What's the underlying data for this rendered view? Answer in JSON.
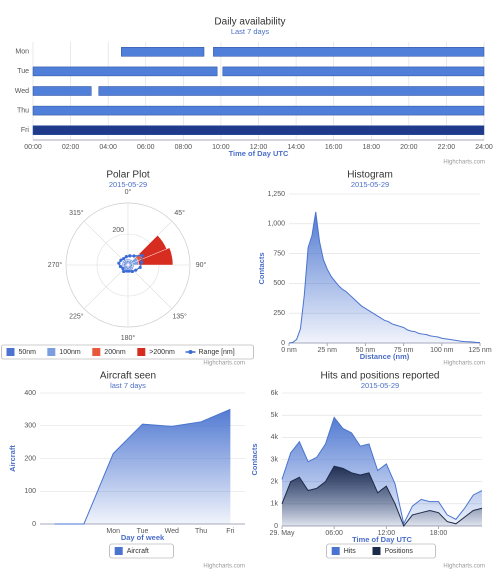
{
  "chart_data": [
    {
      "type": "xrange",
      "title": "Daily availability",
      "subtitle": "Last 7 days",
      "categories": [
        "Mon",
        "Tue",
        "Wed",
        "Thu",
        "Fri"
      ],
      "segments": [
        {
          "y": 0,
          "start": 4.7,
          "end": 9.1,
          "color": "#4f7fd8"
        },
        {
          "y": 0,
          "start": 9.6,
          "end": 24,
          "color": "#4f7fd8"
        },
        {
          "y": 1,
          "start": 0,
          "end": 9.8,
          "color": "#4f7fd8"
        },
        {
          "y": 1,
          "start": 10.1,
          "end": 24,
          "color": "#4f7fd8"
        },
        {
          "y": 2,
          "start": 0,
          "end": 3.1,
          "color": "#4f7fd8"
        },
        {
          "y": 2,
          "start": 3.5,
          "end": 24,
          "color": "#4f7fd8"
        },
        {
          "y": 3,
          "start": 0,
          "end": 24,
          "color": "#4f7fd8"
        },
        {
          "y": 4,
          "start": 0,
          "end": 24,
          "color": "#1f3a8a"
        }
      ],
      "xlim": [
        0,
        24
      ],
      "xticks": [
        {
          "value": 0,
          "label": "00:00"
        },
        {
          "value": 2,
          "label": "02:00"
        },
        {
          "value": 4,
          "label": "04:00"
        },
        {
          "value": 6,
          "label": "06:00"
        },
        {
          "value": 8,
          "label": "08:00"
        },
        {
          "value": 10,
          "label": "10:00"
        },
        {
          "value": 12,
          "label": "12:00"
        },
        {
          "value": 14,
          "label": "14:00"
        },
        {
          "value": 16,
          "label": "16:00"
        },
        {
          "value": 18,
          "label": "18:00"
        },
        {
          "value": 20,
          "label": "20:00"
        },
        {
          "value": 22,
          "label": "22:00"
        },
        {
          "value": 24,
          "label": "24:00"
        }
      ],
      "x_label": "Time of Day UTC",
      "grid": true,
      "credits": "Highcharts.com"
    },
    {
      "type": "polar",
      "title": "Polar Plot",
      "subtitle": "2015-05-29",
      "x": [
        0,
        22.5,
        45,
        67.5,
        90,
        112.5,
        135,
        157.5,
        180,
        202.5,
        225,
        247.5,
        270,
        292.5,
        315,
        337.5
      ],
      "xticks": [
        {
          "value": 0,
          "label": "0°"
        },
        {
          "value": 45,
          "label": "45°"
        },
        {
          "value": 90,
          "label": "90°"
        },
        {
          "value": 135,
          "label": "135°"
        },
        {
          "value": 180,
          "label": "180°"
        },
        {
          "value": 225,
          "label": "225°"
        },
        {
          "value": 270,
          "label": "270°"
        },
        {
          "value": 315,
          "label": "315°"
        }
      ],
      "ylim": [
        0,
        400
      ],
      "yticks": [
        200
      ],
      "series": [
        {
          "name": "50nm",
          "color": "#4a74d0",
          "values": [
            30,
            30,
            30,
            30,
            30,
            30,
            30,
            30,
            30,
            30,
            30,
            30,
            30,
            30,
            30,
            30
          ]
        },
        {
          "name": "100nm",
          "color": "#7b9ee0",
          "values": [
            10,
            10,
            40,
            40,
            10,
            10,
            10,
            10,
            10,
            10,
            10,
            10,
            10,
            10,
            10,
            10
          ]
        },
        {
          "name": "200nm",
          "color": "#e8593c",
          "values": [
            0,
            0,
            30,
            0,
            0,
            0,
            0,
            0,
            0,
            0,
            0,
            0,
            0,
            0,
            0,
            0
          ]
        },
        {
          "name": ">200nm",
          "color": "#d62d20",
          "values": [
            0,
            0,
            170,
            220,
            0,
            0,
            0,
            0,
            0,
            0,
            0,
            0,
            0,
            0,
            0,
            0
          ]
        },
        {
          "name": "Range [nm]",
          "type": "line",
          "color": "#3b6bd6",
          "values": [
            60,
            70,
            110,
            90,
            80,
            60,
            50,
            40,
            40,
            50,
            40,
            50,
            60,
            55,
            50,
            55
          ]
        }
      ],
      "legend": true,
      "credits": "Highcharts.com"
    },
    {
      "type": "area",
      "title": "Histogram",
      "subtitle": "2015-05-29",
      "x": [
        0,
        2.5,
        5,
        7.5,
        10,
        12.5,
        15,
        17.5,
        20,
        22.5,
        25,
        27.5,
        30,
        32.5,
        35,
        37.5,
        40,
        42.5,
        45,
        47.5,
        50,
        52.5,
        55,
        57.5,
        60,
        62.5,
        65,
        67.5,
        70,
        72.5,
        75,
        77.5,
        80,
        82.5,
        85,
        87.5,
        90,
        92.5,
        95,
        97.5,
        100,
        102.5,
        105,
        107.5,
        110,
        112.5,
        115,
        117.5,
        120,
        122.5,
        125
      ],
      "series": [
        {
          "color": "#4a74d0",
          "values": [
            0,
            5,
            30,
            120,
            400,
            800,
            900,
            1100,
            850,
            700,
            620,
            560,
            520,
            480,
            450,
            430,
            400,
            370,
            340,
            310,
            290,
            270,
            250,
            230,
            210,
            190,
            180,
            160,
            150,
            140,
            130,
            110,
            100,
            95,
            80,
            75,
            70,
            60,
            55,
            50,
            40,
            35,
            30,
            25,
            20,
            15,
            12,
            10,
            8,
            5,
            3
          ]
        }
      ],
      "xlim": [
        0,
        125
      ],
      "xticks": [
        {
          "value": 0,
          "label": "0 nm"
        },
        {
          "value": 25,
          "label": "25 nm"
        },
        {
          "value": 50,
          "label": "50 nm"
        },
        {
          "value": 75,
          "label": "75 nm"
        },
        {
          "value": 100,
          "label": "100 nm"
        },
        {
          "value": 125,
          "label": "125 nm"
        }
      ],
      "ylim": [
        0,
        1250
      ],
      "yticks": [
        0,
        250,
        500,
        750,
        {
          "value": 1000,
          "label": "1,000"
        },
        {
          "value": 1250,
          "label": "1,250"
        }
      ],
      "x_label": "Distance (nm)",
      "y_label": "Contacts",
      "grid": true,
      "credits": "Highcharts.com"
    },
    {
      "type": "area",
      "title": "Aircraft seen",
      "subtitle": "last 7 days",
      "categories": [
        null,
        null,
        "Mon",
        "Tue",
        "Wed",
        "Thu",
        "Fri"
      ],
      "series": [
        {
          "name": "Aircraft",
          "color": "#4a74d0",
          "values": [
            0,
            0,
            215,
            305,
            298,
            312,
            350
          ]
        }
      ],
      "ylim": [
        0,
        400
      ],
      "yticks": [
        0,
        100,
        200,
        300,
        400
      ],
      "x_label": "Day of week",
      "y_label": "Aircraft",
      "grid": true,
      "legend": true,
      "credits": "Highcharts.com"
    },
    {
      "type": "area",
      "title": "Hits and positions reported",
      "subtitle": "2015-05-29",
      "x": [
        0,
        1,
        2,
        3,
        4,
        5,
        6,
        7,
        8,
        9,
        10,
        11,
        12,
        13,
        14,
        15,
        16,
        17,
        18,
        19,
        20,
        21,
        22,
        23
      ],
      "series": [
        {
          "name": "Hits",
          "color": "#4a74d0",
          "values": [
            2100,
            3300,
            3800,
            2900,
            3100,
            3700,
            4900,
            4400,
            4200,
            3600,
            3700,
            2500,
            2800,
            1900,
            100,
            900,
            1200,
            1100,
            1100,
            500,
            300,
            800,
            1400,
            1600
          ]
        },
        {
          "name": "Positions",
          "color": "#1c2a4a",
          "values": [
            1000,
            2000,
            2200,
            1600,
            1700,
            2000,
            2700,
            2600,
            2400,
            2300,
            2400,
            1500,
            1800,
            1000,
            0,
            500,
            600,
            700,
            600,
            200,
            100,
            400,
            700,
            800
          ]
        }
      ],
      "xlim": [
        0,
        23
      ],
      "xticks": [
        {
          "value": 0,
          "label": "29. May"
        },
        {
          "value": 6,
          "label": "06:00"
        },
        {
          "value": 12,
          "label": "12:00"
        },
        {
          "value": 18,
          "label": "18:00"
        }
      ],
      "ylim": [
        0,
        6000
      ],
      "yticks": [
        0,
        {
          "value": 1000,
          "label": "1k"
        },
        {
          "value": 2000,
          "label": "2k"
        },
        {
          "value": 3000,
          "label": "3k"
        },
        {
          "value": 4000,
          "label": "4k"
        },
        {
          "value": 5000,
          "label": "5k"
        },
        {
          "value": 6000,
          "label": "6k"
        }
      ],
      "x_label": "Time of Day UTC",
      "y_label": "Contacts",
      "grid": true,
      "legend": true,
      "credits": "Highcharts.com"
    }
  ]
}
